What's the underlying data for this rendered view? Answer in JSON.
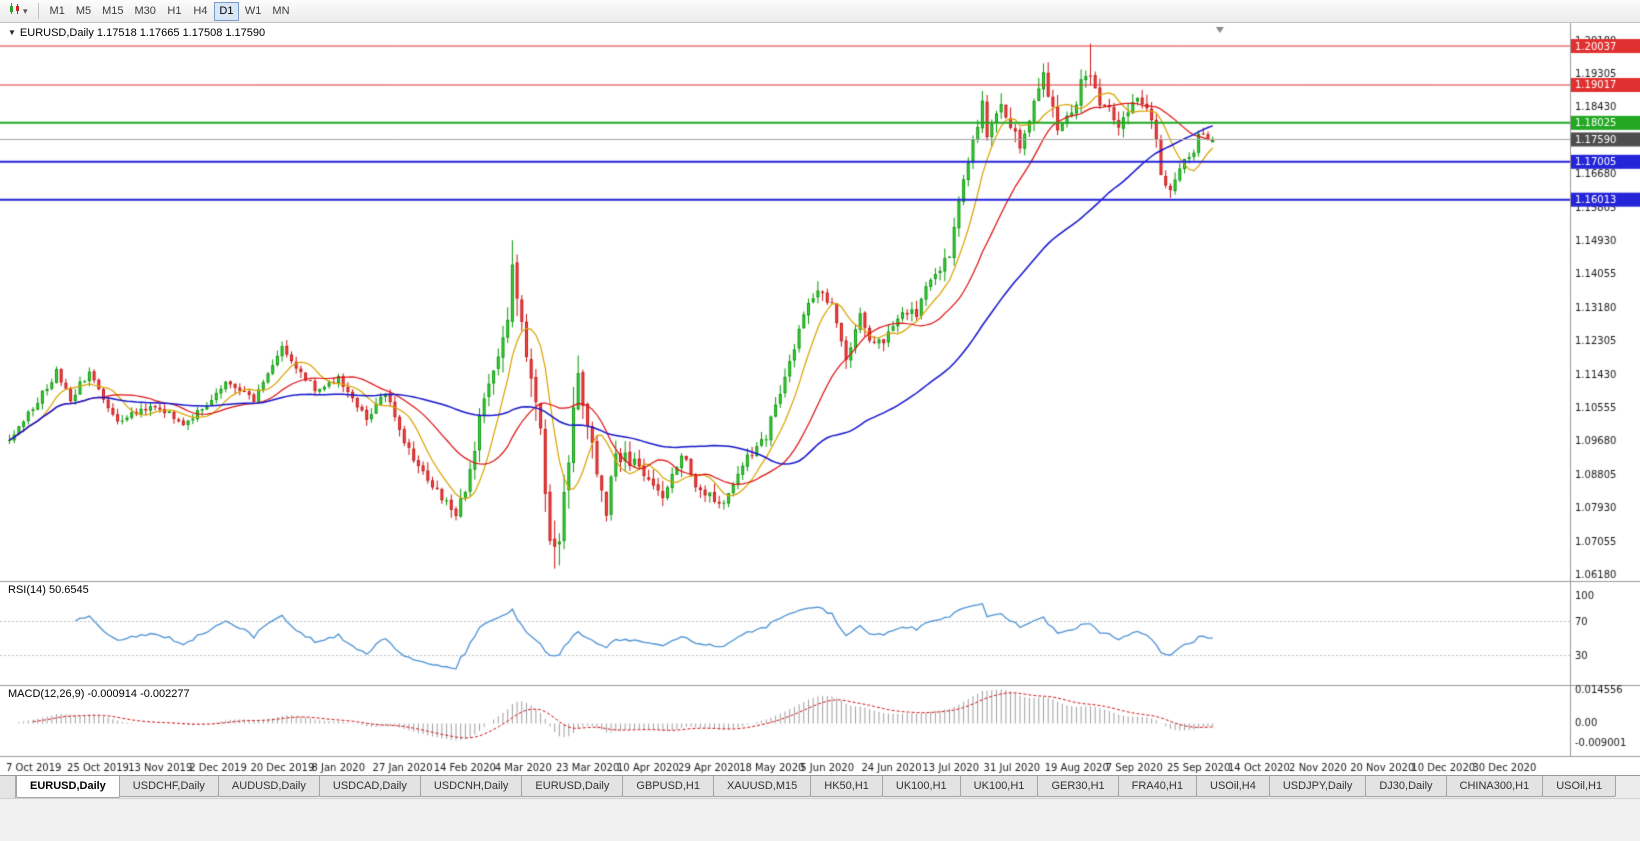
{
  "icons": {
    "caret": "▾"
  },
  "toolbar": {
    "timeframes": [
      "M1",
      "M5",
      "M15",
      "M30",
      "H1",
      "H4",
      "D1",
      "W1",
      "MN"
    ],
    "active": "D1"
  },
  "chart": {
    "symbol": "EURUSD",
    "period": "Daily",
    "title_line": "EURUSD,Daily 1.17518 1.17665 1.17508 1.17590",
    "open": "1.17518",
    "high": "1.17665",
    "low": "1.17508",
    "close": "1.17590"
  },
  "chart_data": {
    "type": "candlestick",
    "title": "EURUSD,Daily",
    "price_axis_ticks": [
      "1.20180",
      "1.19305",
      "1.18430",
      "1.17555",
      "1.16680",
      "1.15805",
      "1.14930",
      "1.14055",
      "1.13180",
      "1.12305",
      "1.11430",
      "1.10555",
      "1.09680",
      "1.08805",
      "1.07930",
      "1.07055",
      "1.06180"
    ],
    "y_ticks": {
      "start": 1.2018,
      "step": 0.00875,
      "count": 17
    },
    "hlines": [
      {
        "value": 1.20037,
        "label": "1.20037",
        "color": "#e03030",
        "width": 1
      },
      {
        "value": 1.19017,
        "label": "1.19017",
        "color": "#e03030",
        "width": 1
      },
      {
        "value": 1.18025,
        "label": "1.18025",
        "color": "#22a822",
        "width": 2
      },
      {
        "value": 1.17005,
        "label": "1.17005",
        "color": "#2424d8",
        "width": 2
      },
      {
        "value": 1.16013,
        "label": "1.16013",
        "color": "#2424d8",
        "width": 2
      }
    ],
    "current_price": {
      "value": 1.1759,
      "label": "1.17590",
      "line_color": "#a8a8a8",
      "badge_bg": "#4d4d4d"
    },
    "x_axis_dates": [
      {
        "i": 0,
        "t": "7 Oct 2019"
      },
      {
        "i": 13,
        "t": "25 Oct 2019"
      },
      {
        "i": 26,
        "t": "13 Nov 2019"
      },
      {
        "i": 39,
        "t": "2 Dec 2019"
      },
      {
        "i": 52,
        "t": "20 Dec 2019"
      },
      {
        "i": 65,
        "t": "8 Jan 2020"
      },
      {
        "i": 78,
        "t": "27 Jan 2020"
      },
      {
        "i": 91,
        "t": "14 Feb 2020"
      },
      {
        "i": 104,
        "t": "4 Mar 2020"
      },
      {
        "i": 117,
        "t": "23 Mar 2020"
      },
      {
        "i": 130,
        "t": "10 Apr 2020"
      },
      {
        "i": 143,
        "t": "29 Apr 2020"
      },
      {
        "i": 156,
        "t": "18 May 2020"
      },
      {
        "i": 169,
        "t": "5 Jun 2020"
      },
      {
        "i": 182,
        "t": "24 Jun 2020"
      },
      {
        "i": 195,
        "t": "13 Jul 2020"
      },
      {
        "i": 208,
        "t": "31 Jul 2020"
      },
      {
        "i": 221,
        "t": "19 Aug 2020"
      },
      {
        "i": 234,
        "t": "7 Sep 2020"
      },
      {
        "i": 247,
        "t": "25 Sep 2020"
      },
      {
        "i": 260,
        "t": "14 Oct 2020"
      },
      {
        "i": 273,
        "t": "2 Nov 2020"
      },
      {
        "i": 286,
        "t": "20 Nov 2020"
      },
      {
        "i": 299,
        "t": "10 Dec 2020"
      },
      {
        "i": 312,
        "t": "30 Dec 2020"
      }
    ],
    "candles": {
      "count": 257,
      "close_anchors": [
        [
          0,
          1.097
        ],
        [
          4,
          1.104
        ],
        [
          10,
          1.115
        ],
        [
          13,
          1.108
        ],
        [
          17,
          1.1152
        ],
        [
          23,
          1.1017
        ],
        [
          28,
          1.1051
        ],
        [
          32,
          1.1058
        ],
        [
          37,
          1.1017
        ],
        [
          42,
          1.106
        ],
        [
          46,
          1.113
        ],
        [
          52,
          1.1078
        ],
        [
          58,
          1.1212
        ],
        [
          65,
          1.1105
        ],
        [
          70,
          1.1136
        ],
        [
          76,
          1.1026
        ],
        [
          80,
          1.1094
        ],
        [
          85,
          1.0945
        ],
        [
          91,
          1.083
        ],
        [
          95,
          1.0788
        ],
        [
          98,
          1.088
        ],
        [
          100,
          1.1026
        ],
        [
          103,
          1.1173
        ],
        [
          106,
          1.1284
        ],
        [
          107,
          1.144
        ],
        [
          109,
          1.127
        ],
        [
          110,
          1.1184
        ],
        [
          111,
          1.1106
        ],
        [
          113,
          1.0995
        ],
        [
          115,
          1.0693
        ],
        [
          117,
          1.0725
        ],
        [
          120,
          1.103
        ],
        [
          121,
          1.114
        ],
        [
          124,
          1.096
        ],
        [
          127,
          1.0791
        ],
        [
          129,
          1.093
        ],
        [
          133,
          1.091
        ],
        [
          137,
          1.0858
        ],
        [
          139,
          1.0822
        ],
        [
          143,
          1.094
        ],
        [
          147,
          1.0834
        ],
        [
          152,
          1.0805
        ],
        [
          156,
          1.0915
        ],
        [
          159,
          1.095
        ],
        [
          161,
          1.0984
        ],
        [
          165,
          1.1135
        ],
        [
          169,
          1.1292
        ],
        [
          172,
          1.1375
        ],
        [
          175,
          1.1324
        ],
        [
          178,
          1.1177
        ],
        [
          181,
          1.1308
        ],
        [
          183,
          1.1219
        ],
        [
          186,
          1.1234
        ],
        [
          190,
          1.131
        ],
        [
          193,
          1.13
        ],
        [
          196,
          1.1398
        ],
        [
          200,
          1.1446
        ],
        [
          202,
          1.1596
        ],
        [
          205,
          1.1752
        ],
        [
          207,
          1.1846
        ],
        [
          208,
          1.1778
        ],
        [
          211,
          1.1862
        ],
        [
          215,
          1.1739
        ],
        [
          217,
          1.1813
        ],
        [
          220,
          1.193
        ],
        [
          223,
          1.1797
        ],
        [
          226,
          1.183
        ],
        [
          229,
          1.1936
        ],
        [
          230,
          1.191
        ],
        [
          233,
          1.184
        ],
        [
          236,
          1.1801
        ],
        [
          239,
          1.1866
        ],
        [
          242,
          1.1846
        ],
        [
          244,
          1.177
        ],
        [
          245,
          1.1662
        ],
        [
          247,
          1.163
        ],
        [
          248,
          1.1663
        ],
        [
          250,
          1.172
        ],
        [
          252,
          1.1716
        ],
        [
          253,
          1.1784
        ],
        [
          255,
          1.1766
        ],
        [
          256,
          1.1759
        ]
      ],
      "vol_anchors": [
        [
          0,
          0.0032
        ],
        [
          40,
          0.0028
        ],
        [
          80,
          0.0034
        ],
        [
          98,
          0.0055
        ],
        [
          106,
          0.0095
        ],
        [
          112,
          0.011
        ],
        [
          118,
          0.012
        ],
        [
          124,
          0.0085
        ],
        [
          132,
          0.006
        ],
        [
          150,
          0.0045
        ],
        [
          168,
          0.005
        ],
        [
          195,
          0.0045
        ],
        [
          207,
          0.0065
        ],
        [
          230,
          0.006
        ],
        [
          246,
          0.005
        ],
        [
          256,
          0.0035
        ]
      ],
      "extremes": [
        {
          "idx": 107,
          "high": 1.1495
        },
        {
          "idx": 116,
          "low": 1.0635
        },
        {
          "idx": 230,
          "high": 1.201
        },
        {
          "idx": 247,
          "low": 1.1612
        }
      ],
      "last_candle": {
        "o": 1.17518,
        "h": 1.17665,
        "l": 1.17508,
        "c": 1.1759
      },
      "up_color": "#0c9a0c",
      "up_fill": "#4ad34a",
      "down_color": "#c81616",
      "down_fill": "#f25050"
    },
    "moving_averages": [
      {
        "period": 8,
        "color": "#d9a300"
      },
      {
        "period": 21,
        "color": "#dd1111"
      },
      {
        "period": 55,
        "color": "#1515cc"
      }
    ],
    "rsi": {
      "label": "RSI(14) 50.6545",
      "period": 14,
      "levels": [
        70,
        30
      ],
      "axis_ticks": [
        "100",
        "70",
        "30"
      ],
      "color": "#4f93d4"
    },
    "macd": {
      "label": "MACD(12,26,9) -0.000914 -0.002277",
      "fast": 12,
      "slow": 26,
      "signal_period": 9,
      "axis_ticks": [
        "0.014556",
        "0.00",
        "-0.009001"
      ],
      "hist_color": "#a0a0a0",
      "signal_color": "#d01818"
    }
  },
  "tabs": {
    "active_index": 0,
    "items": [
      "EURUSD,Daily",
      "USDCHF,Daily",
      "AUDUSD,Daily",
      "USDCAD,Daily",
      "USDCNH,Daily",
      "EURUSD,Daily",
      "GBPUSD,H1",
      "XAUUSD,M15",
      "HK50,H1",
      "UK100,H1",
      "UK100,H1",
      "GER30,H1",
      "FRA40,H1",
      "USOil,H4",
      "USDJPY,Daily",
      "DJ30,Daily",
      "CHINA300,H1",
      "USOil,H1"
    ]
  }
}
